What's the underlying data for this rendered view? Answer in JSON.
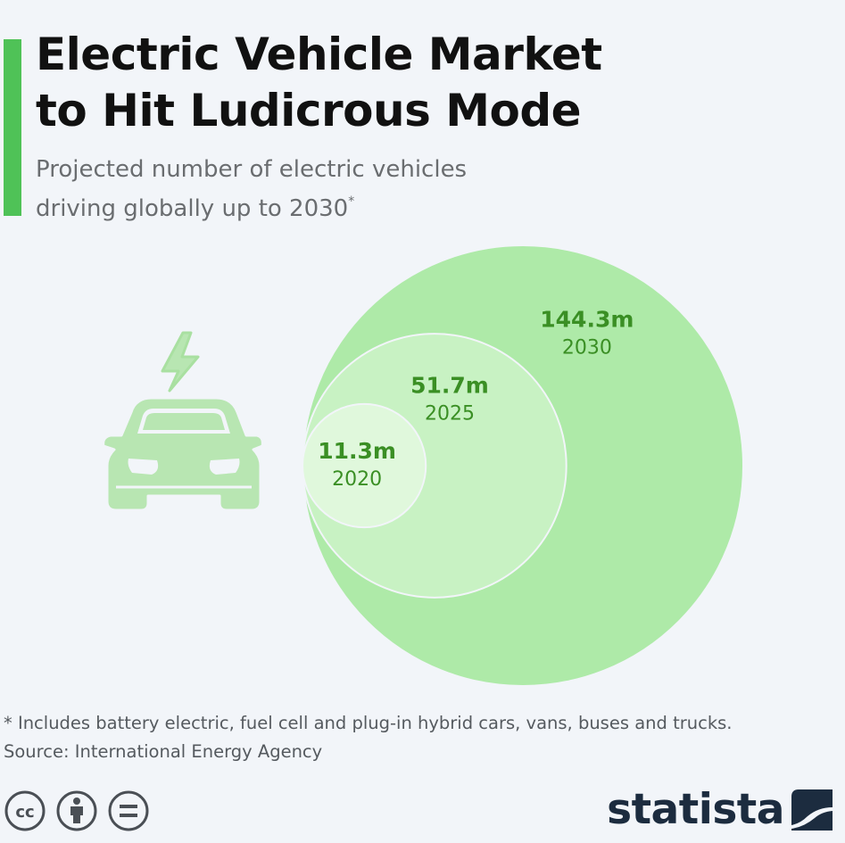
{
  "header": {
    "title_line1": "Electric Vehicle Market",
    "title_line2": "to Hit Ludicrous Mode",
    "subtitle_line1": "Projected number of electric vehicles",
    "subtitle_line2": "driving globally up to 2030",
    "subtitle_mark": "*"
  },
  "colors": {
    "accent": "#4fc257",
    "value_text": "#3a8f24",
    "circle_large": "#aeeaa8",
    "circle_mid": "#c8f2c3",
    "circle_small": "#e0f8dc"
  },
  "chart_data": {
    "type": "bubble",
    "title": "Projected number of electric vehicles driving globally up to 2030",
    "unit": "million vehicles",
    "categories": [
      "2020",
      "2025",
      "2030"
    ],
    "values": [
      11.3,
      51.7,
      144.3
    ],
    "labels": [
      "11.3m",
      "51.7m",
      "144.3m"
    ]
  },
  "icon": "electric-car-icon",
  "footer": {
    "note": "* Includes battery electric, fuel cell and plug-in hybrid cars, vans, buses and trucks.",
    "source": "Source: International Energy Agency",
    "brand": "statista",
    "license_icons": [
      "creative-commons-icon",
      "attribution-icon",
      "no-derivatives-icon"
    ]
  }
}
